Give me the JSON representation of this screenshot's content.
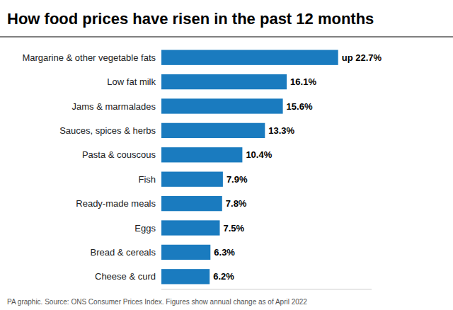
{
  "chart_data": {
    "type": "bar",
    "orientation": "horizontal",
    "title": "How food prices have risen in the past 12 months",
    "categories": [
      "Cheese & curd",
      "Bread & cereals",
      "Eggs",
      "Ready-made meals",
      "Fish",
      "Pasta & couscous",
      "Sauces, spices & herbs",
      "Jams & marmalades",
      "Low fat milk",
      "Margarine & other vegetable fats"
    ],
    "values": [
      6.2,
      6.3,
      7.5,
      7.8,
      7.9,
      10.4,
      13.3,
      15.6,
      16.1,
      22.7
    ],
    "value_labels": [
      "6.2%",
      "6.3%",
      "7.5%",
      "7.8%",
      "7.9%",
      "10.4%",
      "13.3%",
      "15.6%",
      "16.1%",
      "up 22.7%"
    ],
    "data_labels": true,
    "color": "#1a7bbf",
    "xlim": [
      0,
      27
    ],
    "grid": false,
    "tick_labels": "y",
    "annotations": [
      "PA graphic. Source: ONS Consumer Prices Index. Figures show annual change as of April 2022"
    ]
  }
}
